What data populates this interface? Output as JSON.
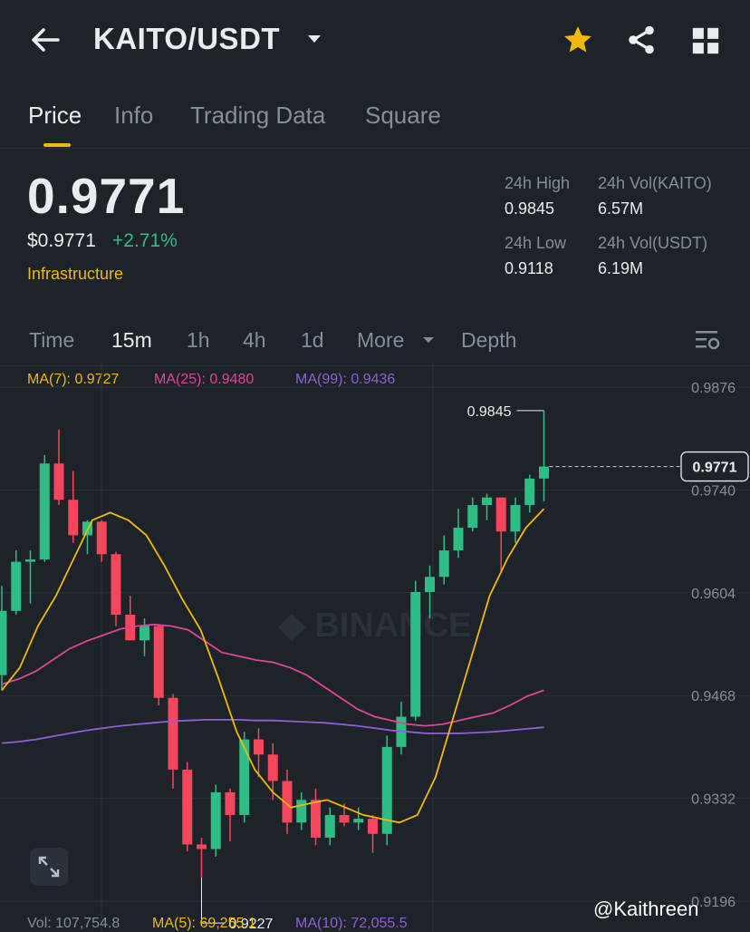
{
  "header": {
    "pair": "KAITO/USDT"
  },
  "tabs": [
    {
      "label": "Price",
      "active": true
    },
    {
      "label": "Info",
      "active": false
    },
    {
      "label": "Trading Data",
      "active": false
    },
    {
      "label": "Square",
      "active": false
    }
  ],
  "price": {
    "last": "0.9771",
    "usd": "$0.9771",
    "change_pct": "+2.71%",
    "sector": "Infrastructure"
  },
  "stats": {
    "high_label": "24h High",
    "high": "0.9845",
    "low_label": "24h Low",
    "low": "0.9118",
    "vol_base_label": "24h Vol(KAITO)",
    "vol_base": "6.57M",
    "vol_quote_label": "24h Vol(USDT)",
    "vol_quote": "6.19M"
  },
  "intervals": [
    {
      "label": "Time",
      "active": false
    },
    {
      "label": "15m",
      "active": true
    },
    {
      "label": "1h",
      "active": false
    },
    {
      "label": "4h",
      "active": false
    },
    {
      "label": "1d",
      "active": false
    },
    {
      "label": "More",
      "active": false
    },
    {
      "label": "Depth",
      "active": false
    }
  ],
  "ma_legend": {
    "ma7": "MA(7): 0.9727",
    "ma25": "MA(25): 0.9480",
    "ma99": "MA(99): 0.9436"
  },
  "volume_legend": {
    "vol": "Vol: 107,754.8",
    "ma5": "MA(5): 69,255.1",
    "ma10": "MA(10): 72,055.5"
  },
  "watermark": "@Kaithreen",
  "colors": {
    "up": "#2ebd85",
    "down": "#f6465d",
    "accent": "#f0b90b",
    "ma7": "#f0b90b",
    "ma25": "#e0439a",
    "ma99": "#8f5fd6"
  },
  "chart_data": {
    "type": "candlestick",
    "y_ticks": [
      "0.9876",
      "0.9740",
      "0.9604",
      "0.9468",
      "0.9332",
      "0.9196"
    ],
    "ylim": [
      0.9196,
      0.9876
    ],
    "last_price_label": "0.9771",
    "high_marker": "0.9845",
    "low_marker": "0.9227",
    "candles": [
      {
        "o": 0.9495,
        "h": 0.9613,
        "l": 0.9475,
        "c": 0.958
      },
      {
        "o": 0.958,
        "h": 0.966,
        "l": 0.9575,
        "c": 0.9645
      },
      {
        "o": 0.9645,
        "h": 0.966,
        "l": 0.959,
        "c": 0.9648
      },
      {
        "o": 0.9648,
        "h": 0.9786,
        "l": 0.9645,
        "c": 0.9775
      },
      {
        "o": 0.9775,
        "h": 0.982,
        "l": 0.972,
        "c": 0.9727
      },
      {
        "o": 0.9727,
        "h": 0.9765,
        "l": 0.967,
        "c": 0.968
      },
      {
        "o": 0.968,
        "h": 0.97,
        "l": 0.9655,
        "c": 0.9698
      },
      {
        "o": 0.9698,
        "h": 0.97,
        "l": 0.9645,
        "c": 0.9655
      },
      {
        "o": 0.9655,
        "h": 0.9658,
        "l": 0.956,
        "c": 0.9575
      },
      {
        "o": 0.9575,
        "h": 0.96,
        "l": 0.9545,
        "c": 0.9541
      },
      {
        "o": 0.9541,
        "h": 0.957,
        "l": 0.952,
        "c": 0.956
      },
      {
        "o": 0.956,
        "h": 0.9562,
        "l": 0.9455,
        "c": 0.9465
      },
      {
        "o": 0.9465,
        "h": 0.947,
        "l": 0.9345,
        "c": 0.937
      },
      {
        "o": 0.937,
        "h": 0.938,
        "l": 0.9262,
        "c": 0.9271
      },
      {
        "o": 0.9271,
        "h": 0.928,
        "l": 0.9227,
        "c": 0.9265
      },
      {
        "o": 0.9265,
        "h": 0.935,
        "l": 0.9255,
        "c": 0.934
      },
      {
        "o": 0.934,
        "h": 0.9345,
        "l": 0.9275,
        "c": 0.931
      },
      {
        "o": 0.931,
        "h": 0.942,
        "l": 0.93,
        "c": 0.941
      },
      {
        "o": 0.941,
        "h": 0.9425,
        "l": 0.936,
        "c": 0.939
      },
      {
        "o": 0.939,
        "h": 0.9405,
        "l": 0.933,
        "c": 0.9355
      },
      {
        "o": 0.9355,
        "h": 0.937,
        "l": 0.9285,
        "c": 0.93
      },
      {
        "o": 0.93,
        "h": 0.934,
        "l": 0.929,
        "c": 0.933
      },
      {
        "o": 0.933,
        "h": 0.9345,
        "l": 0.927,
        "c": 0.928
      },
      {
        "o": 0.928,
        "h": 0.932,
        "l": 0.927,
        "c": 0.931
      },
      {
        "o": 0.931,
        "h": 0.9325,
        "l": 0.9295,
        "c": 0.93
      },
      {
        "o": 0.93,
        "h": 0.932,
        "l": 0.929,
        "c": 0.9305
      },
      {
        "o": 0.9305,
        "h": 0.931,
        "l": 0.926,
        "c": 0.9285
      },
      {
        "o": 0.9285,
        "h": 0.9415,
        "l": 0.927,
        "c": 0.94
      },
      {
        "o": 0.94,
        "h": 0.946,
        "l": 0.939,
        "c": 0.944
      },
      {
        "o": 0.944,
        "h": 0.962,
        "l": 0.9435,
        "c": 0.9605
      },
      {
        "o": 0.9605,
        "h": 0.964,
        "l": 0.957,
        "c": 0.9625
      },
      {
        "o": 0.9625,
        "h": 0.968,
        "l": 0.9615,
        "c": 0.966
      },
      {
        "o": 0.966,
        "h": 0.9715,
        "l": 0.965,
        "c": 0.969
      },
      {
        "o": 0.969,
        "h": 0.973,
        "l": 0.9685,
        "c": 0.972
      },
      {
        "o": 0.972,
        "h": 0.9735,
        "l": 0.97,
        "c": 0.973
      },
      {
        "o": 0.973,
        "h": 0.973,
        "l": 0.963,
        "c": 0.9685
      },
      {
        "o": 0.9685,
        "h": 0.973,
        "l": 0.967,
        "c": 0.972
      },
      {
        "o": 0.972,
        "h": 0.976,
        "l": 0.971,
        "c": 0.9755
      },
      {
        "o": 0.9755,
        "h": 0.9845,
        "l": 0.9725,
        "c": 0.9771
      }
    ],
    "ma7": [
      0.9475,
      0.9505,
      0.956,
      0.96,
      0.965,
      0.97,
      0.971,
      0.97,
      0.968,
      0.964,
      0.9595,
      0.9555,
      0.949,
      0.942,
      0.937,
      0.934,
      0.932,
      0.9325,
      0.933,
      0.932,
      0.931,
      0.9305,
      0.93,
      0.931,
      0.936,
      0.944,
      0.952,
      0.96,
      0.965,
      0.969,
      0.9715
    ],
    "ma7_start": 0,
    "ma25": [
      0.9483,
      0.949,
      0.95,
      0.9515,
      0.953,
      0.954,
      0.9548,
      0.9556,
      0.956,
      0.9562,
      0.956,
      0.9555,
      0.954,
      0.9525,
      0.952,
      0.9515,
      0.9512,
      0.9505,
      0.9495,
      0.948,
      0.9465,
      0.945,
      0.944,
      0.9435,
      0.943,
      0.9428,
      0.943,
      0.9435,
      0.944,
      0.9445,
      0.9455,
      0.9467,
      0.9475
    ],
    "ma99": [
      0.9405,
      0.9407,
      0.941,
      0.9414,
      0.9418,
      0.9422,
      0.9425,
      0.9428,
      0.943,
      0.9432,
      0.9434,
      0.9435,
      0.9436,
      0.9436,
      0.9436,
      0.9435,
      0.9435,
      0.9434,
      0.9433,
      0.9432,
      0.943,
      0.9428,
      0.9425,
      0.9422,
      0.942,
      0.9418,
      0.9418,
      0.9418,
      0.9419,
      0.942,
      0.9422,
      0.9424,
      0.9426
    ]
  }
}
